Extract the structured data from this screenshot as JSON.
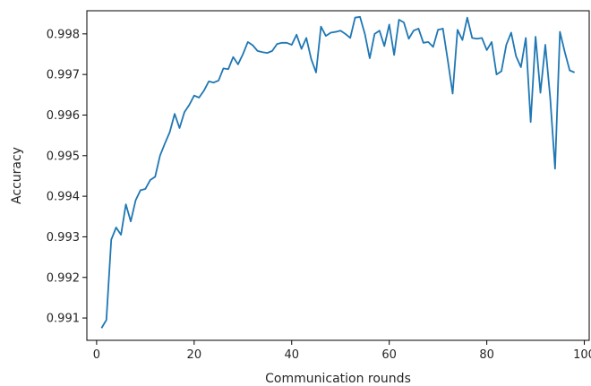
{
  "chart_data": {
    "type": "line",
    "title": "",
    "xlabel": "Communication rounds",
    "ylabel": "Accuracy",
    "xlim": [
      -2,
      101
    ],
    "ylim": [
      0.99045,
      0.99857
    ],
    "grid": false,
    "legend": "none",
    "xticks": [
      0,
      20,
      40,
      60,
      80,
      100
    ],
    "xtick_labels": [
      "0",
      "20",
      "40",
      "60",
      "80",
      "100"
    ],
    "yticks": [
      0.991,
      0.992,
      0.993,
      0.994,
      0.995,
      0.996,
      0.997,
      0.998
    ],
    "ytick_labels": [
      "0.991",
      "0.992",
      "0.993",
      "0.994",
      "0.995",
      "0.996",
      "0.997",
      "0.998"
    ],
    "series": [
      {
        "color": "#1f77b4",
        "x": [
          1,
          2,
          3,
          4,
          5,
          6,
          7,
          8,
          9,
          10,
          11,
          12,
          13,
          14,
          15,
          16,
          17,
          18,
          19,
          20,
          21,
          22,
          23,
          24,
          25,
          26,
          27,
          28,
          29,
          30,
          31,
          32,
          33,
          34,
          35,
          36,
          37,
          38,
          39,
          40,
          41,
          42,
          43,
          44,
          45,
          46,
          47,
          48,
          49,
          50,
          51,
          52,
          53,
          54,
          55,
          56,
          57,
          58,
          59,
          60,
          61,
          62,
          63,
          64,
          65,
          66,
          67,
          68,
          69,
          70,
          71,
          72,
          73,
          74,
          75,
          76,
          77,
          78,
          79,
          80,
          81,
          82,
          83,
          84,
          85,
          86,
          87,
          88,
          89,
          90,
          91,
          92,
          93,
          94,
          95,
          96,
          97,
          98
        ],
        "y": [
          0.99075,
          0.99095,
          0.99293,
          0.99323,
          0.99305,
          0.9938,
          0.99338,
          0.9939,
          0.99415,
          0.99418,
          0.9944,
          0.99448,
          0.995,
          0.9953,
          0.99558,
          0.99603,
          0.99568,
          0.99607,
          0.99625,
          0.99648,
          0.99643,
          0.9966,
          0.99683,
          0.9968,
          0.99685,
          0.99715,
          0.99713,
          0.99743,
          0.99725,
          0.9975,
          0.9978,
          0.99772,
          0.99758,
          0.99755,
          0.99753,
          0.99758,
          0.99775,
          0.99778,
          0.99778,
          0.99773,
          0.99798,
          0.99763,
          0.9979,
          0.99738,
          0.99705,
          0.99818,
          0.99795,
          0.99803,
          0.99805,
          0.99808,
          0.998,
          0.9979,
          0.9984,
          0.99842,
          0.998,
          0.9974,
          0.998,
          0.99808,
          0.9977,
          0.99823,
          0.99748,
          0.99835,
          0.99828,
          0.99788,
          0.99808,
          0.99813,
          0.99778,
          0.9978,
          0.99768,
          0.9981,
          0.99813,
          0.99735,
          0.99653,
          0.9981,
          0.99785,
          0.9984,
          0.9979,
          0.99788,
          0.9979,
          0.9976,
          0.9978,
          0.997,
          0.99708,
          0.99773,
          0.99803,
          0.99745,
          0.99718,
          0.9979,
          0.99583,
          0.99793,
          0.99655,
          0.99773,
          0.99643,
          0.99468,
          0.99805,
          0.99755,
          0.9971,
          0.99705
        ]
      }
    ]
  }
}
